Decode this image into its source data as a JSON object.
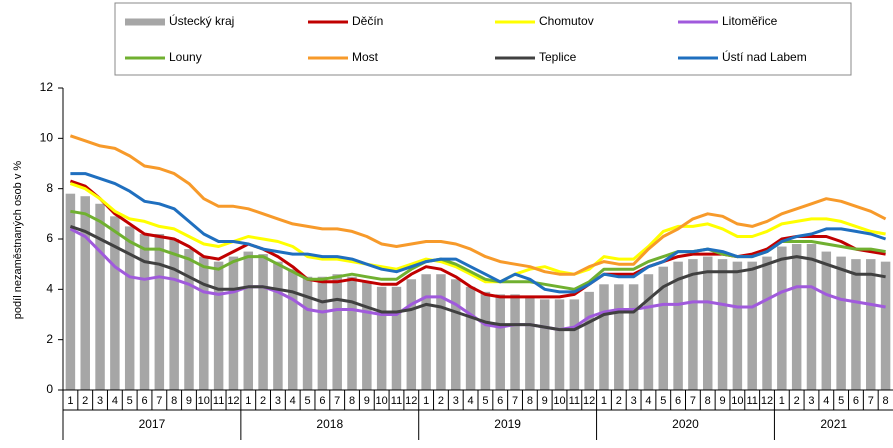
{
  "chart_data": {
    "type": "line",
    "y_label": "podíl nezaměstnaných osob v %",
    "categories": [
      "1",
      "2",
      "3",
      "4",
      "5",
      "6",
      "7",
      "8",
      "9",
      "10",
      "11",
      "12",
      "1",
      "2",
      "3",
      "4",
      "5",
      "6",
      "7",
      "8",
      "9",
      "10",
      "11",
      "12",
      "1",
      "2",
      "3",
      "4",
      "5",
      "6",
      "7",
      "8",
      "9",
      "10",
      "11",
      "12",
      "1",
      "2",
      "3",
      "4",
      "5",
      "6",
      "7",
      "8",
      "9",
      "10",
      "11",
      "12",
      "1",
      "2",
      "3",
      "4",
      "5",
      "6",
      "7",
      "8"
    ],
    "year_groups": [
      "2017",
      "2018",
      "2019",
      "2020",
      "2021"
    ],
    "ylim": [
      0,
      12
    ],
    "yticks": [
      0,
      2,
      4,
      6,
      8,
      10,
      12
    ],
    "grid": false,
    "series": [
      {
        "name": "Ústecký kraj",
        "type": "bar",
        "color": "#a6a6a6",
        "values": [
          7.8,
          7.7,
          7.4,
          6.9,
          6.5,
          6.2,
          6.2,
          6.0,
          5.6,
          5.3,
          5.1,
          5.3,
          5.5,
          5.4,
          5.1,
          4.8,
          4.5,
          4.5,
          4.6,
          4.5,
          4.3,
          4.1,
          4.1,
          4.4,
          4.6,
          4.6,
          4.4,
          4.1,
          3.9,
          3.8,
          3.8,
          3.7,
          3.6,
          3.6,
          3.6,
          3.9,
          4.2,
          4.2,
          4.2,
          4.6,
          4.9,
          5.1,
          5.2,
          5.3,
          5.2,
          5.1,
          5.1,
          5.3,
          5.7,
          5.8,
          5.8,
          5.5,
          5.3,
          5.2,
          5.2,
          5.1
        ]
      },
      {
        "name": "Děčín",
        "color": "#c00000",
        "values": [
          8.3,
          8.1,
          7.6,
          7.0,
          6.6,
          6.2,
          6.1,
          6.0,
          5.7,
          5.3,
          5.2,
          5.5,
          5.8,
          5.6,
          5.3,
          4.9,
          4.4,
          4.3,
          4.3,
          4.4,
          4.3,
          4.2,
          4.2,
          4.6,
          4.9,
          4.8,
          4.5,
          4.1,
          3.8,
          3.7,
          3.7,
          3.7,
          3.7,
          3.7,
          3.8,
          4.2,
          4.6,
          4.6,
          4.6,
          4.9,
          5.1,
          5.3,
          5.4,
          5.4,
          5.4,
          5.3,
          5.4,
          5.6,
          6.0,
          6.1,
          6.1,
          6.1,
          5.9,
          5.6,
          5.5,
          5.4
        ]
      },
      {
        "name": "Chomutov",
        "color": "#ffff00",
        "values": [
          8.2,
          8.0,
          7.6,
          7.1,
          6.8,
          6.7,
          6.5,
          6.4,
          6.1,
          5.8,
          5.7,
          5.9,
          6.1,
          6.0,
          5.9,
          5.7,
          5.3,
          5.2,
          5.2,
          5.1,
          5.0,
          4.9,
          4.8,
          5.0,
          5.2,
          5.1,
          4.9,
          4.6,
          4.3,
          4.3,
          4.6,
          4.8,
          4.9,
          4.7,
          4.6,
          4.8,
          5.3,
          5.2,
          5.2,
          5.7,
          6.3,
          6.5,
          6.5,
          6.6,
          6.4,
          6.1,
          6.1,
          6.3,
          6.6,
          6.7,
          6.8,
          6.8,
          6.7,
          6.5,
          6.3,
          6.2
        ]
      },
      {
        "name": "Litoměřice",
        "color": "#a05adc",
        "values": [
          6.4,
          6.1,
          5.5,
          4.9,
          4.5,
          4.4,
          4.5,
          4.4,
          4.2,
          3.9,
          3.8,
          3.9,
          4.1,
          4.1,
          3.9,
          3.6,
          3.2,
          3.1,
          3.2,
          3.2,
          3.1,
          3.0,
          3.0,
          3.4,
          3.7,
          3.7,
          3.4,
          3.0,
          2.6,
          2.5,
          2.6,
          2.6,
          2.5,
          2.4,
          2.5,
          2.9,
          3.1,
          3.2,
          3.2,
          3.3,
          3.4,
          3.4,
          3.5,
          3.5,
          3.4,
          3.3,
          3.3,
          3.6,
          3.9,
          4.1,
          4.1,
          3.8,
          3.6,
          3.5,
          3.4,
          3.3
        ]
      },
      {
        "name": "Louny",
        "color": "#70b030",
        "values": [
          7.1,
          7.0,
          6.7,
          6.3,
          5.9,
          5.6,
          5.6,
          5.4,
          5.2,
          4.9,
          4.8,
          5.1,
          5.3,
          5.3,
          5.0,
          4.7,
          4.4,
          4.4,
          4.5,
          4.6,
          4.5,
          4.4,
          4.4,
          4.8,
          5.1,
          5.2,
          5.0,
          4.7,
          4.4,
          4.3,
          4.3,
          4.3,
          4.2,
          4.1,
          4.0,
          4.3,
          4.8,
          4.8,
          4.8,
          5.1,
          5.3,
          5.5,
          5.5,
          5.6,
          5.4,
          5.3,
          5.3,
          5.5,
          5.9,
          5.9,
          5.9,
          5.8,
          5.7,
          5.6,
          5.6,
          5.5
        ]
      },
      {
        "name": "Most",
        "color": "#f79a2a",
        "values": [
          10.1,
          9.9,
          9.7,
          9.6,
          9.3,
          8.9,
          8.8,
          8.6,
          8.2,
          7.6,
          7.3,
          7.3,
          7.2,
          7.0,
          6.8,
          6.6,
          6.5,
          6.4,
          6.4,
          6.3,
          6.1,
          5.8,
          5.7,
          5.8,
          5.9,
          5.9,
          5.8,
          5.6,
          5.3,
          5.1,
          5.0,
          4.9,
          4.7,
          4.6,
          4.6,
          4.9,
          5.1,
          5.0,
          5.0,
          5.6,
          6.1,
          6.4,
          6.8,
          7.0,
          6.9,
          6.6,
          6.5,
          6.7,
          7.0,
          7.2,
          7.4,
          7.6,
          7.5,
          7.3,
          7.1,
          6.8
        ]
      },
      {
        "name": "Teplice",
        "color": "#404040",
        "values": [
          6.5,
          6.3,
          6.0,
          5.7,
          5.4,
          5.1,
          5.0,
          4.8,
          4.5,
          4.2,
          4.0,
          4.0,
          4.1,
          4.1,
          4.0,
          3.9,
          3.7,
          3.5,
          3.6,
          3.5,
          3.3,
          3.1,
          3.1,
          3.2,
          3.4,
          3.3,
          3.1,
          2.9,
          2.7,
          2.6,
          2.6,
          2.6,
          2.5,
          2.4,
          2.4,
          2.7,
          3.0,
          3.1,
          3.1,
          3.6,
          4.1,
          4.4,
          4.6,
          4.7,
          4.7,
          4.7,
          4.8,
          5.0,
          5.2,
          5.3,
          5.2,
          5.0,
          4.8,
          4.6,
          4.6,
          4.5
        ]
      },
      {
        "name": "Ústí nad Labem",
        "color": "#1f6fbf",
        "values": [
          8.6,
          8.6,
          8.4,
          8.2,
          7.9,
          7.5,
          7.4,
          7.2,
          6.7,
          6.2,
          5.9,
          5.9,
          5.8,
          5.6,
          5.5,
          5.4,
          5.4,
          5.3,
          5.3,
          5.2,
          5.0,
          4.8,
          4.7,
          4.9,
          5.1,
          5.2,
          5.2,
          4.9,
          4.6,
          4.3,
          4.6,
          4.4,
          4.0,
          3.9,
          3.9,
          4.2,
          4.6,
          4.5,
          4.5,
          4.9,
          5.1,
          5.5,
          5.5,
          5.6,
          5.5,
          5.3,
          5.3,
          5.5,
          5.9,
          6.1,
          6.2,
          6.4,
          6.4,
          6.3,
          6.2,
          6.0
        ]
      }
    ]
  }
}
